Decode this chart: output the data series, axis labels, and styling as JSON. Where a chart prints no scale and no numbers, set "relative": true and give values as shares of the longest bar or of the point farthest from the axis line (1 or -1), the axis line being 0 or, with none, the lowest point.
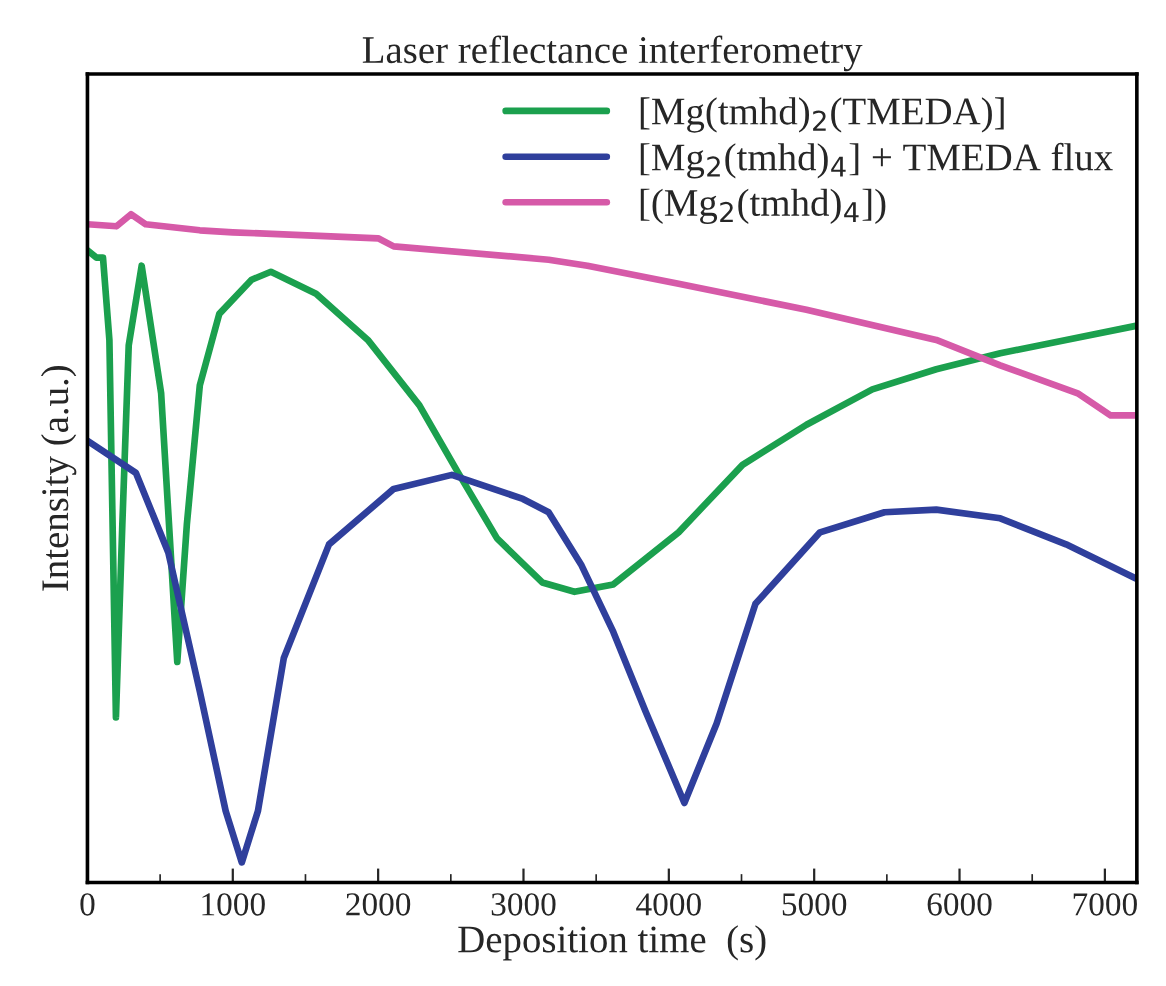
{
  "chart_data": {
    "type": "line",
    "title": "Laser reflectance interferometry",
    "xlabel": "Deposition time  (s)",
    "ylabel": "Intensity (a.u.)",
    "relative": true,
    "xlim": [
      0,
      7220
    ],
    "xticks": [
      0,
      1000,
      2000,
      3000,
      4000,
      5000,
      6000,
      7000
    ],
    "tick_labels": "x",
    "grid": false,
    "legend": "top right",
    "line_style": "solid",
    "marker": "none",
    "series": [
      {
        "name": "[Mg(tmhd)$_{2}$(TMEDA)]",
        "color": "#1ba04e",
        "x": [
          0,
          62,
          107,
          151,
          196,
          240,
          284,
          373,
          507,
          618,
          684,
          773,
          907,
          1129,
          1262,
          1573,
          1929,
          2284,
          2551,
          2818,
          3129,
          3351,
          3618,
          4067,
          4507,
          4947,
          5400,
          5840,
          6280,
          6733,
          7213
        ],
        "values": [
          0.946,
          0.935,
          0.935,
          0.812,
          0.247,
          0.536,
          0.804,
          0.923,
          0.732,
          0.33,
          0.536,
          0.744,
          0.851,
          0.902,
          0.914,
          0.881,
          0.812,
          0.714,
          0.613,
          0.515,
          0.449,
          0.435,
          0.446,
          0.524,
          0.625,
          0.685,
          0.738,
          0.768,
          0.792,
          0.812,
          0.833
        ]
      },
      {
        "name": "[Mg$_{2}$(tmhd)$_{4}$] + TMEDA flux",
        "color": "#2f3f9c",
        "x": [
          0,
          333,
          556,
          773,
          951,
          1062,
          1173,
          1351,
          1662,
          2107,
          2507,
          2996,
          3173,
          3396,
          3618,
          3840,
          4107,
          4329,
          4596,
          5040,
          5484,
          5840,
          6280,
          6733,
          7213
        ],
        "values": [
          0.661,
          0.613,
          0.494,
          0.286,
          0.107,
          0.03,
          0.107,
          0.336,
          0.506,
          0.589,
          0.61,
          0.574,
          0.554,
          0.476,
          0.375,
          0.256,
          0.119,
          0.238,
          0.417,
          0.524,
          0.554,
          0.558,
          0.545,
          0.506,
          0.455
        ]
      },
      {
        "name": "[(Mg$_{2}$(tmhd)$_{4}$])",
        "color": "#d65aa8",
        "x": [
          0,
          200,
          300,
          400,
          773,
          1000,
          2000,
          2107,
          3173,
          3440,
          4067,
          4947,
          5840,
          6280,
          6813,
          7040,
          7213
        ],
        "values": [
          0.985,
          0.982,
          1.0,
          0.985,
          0.976,
          0.973,
          0.964,
          0.952,
          0.932,
          0.923,
          0.896,
          0.857,
          0.812,
          0.774,
          0.732,
          0.699,
          0.699
        ]
      }
    ]
  }
}
